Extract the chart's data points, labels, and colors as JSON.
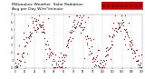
{
  "title": "Milwaukee Weather  Solar Radiation\nAvg per Day W/m²/minute",
  "title_fontsize": 3.2,
  "bg_color": "#ffffff",
  "plot_bg_color": "#ffffff",
  "grid_color": "#bbbbbb",
  "dot_color_red": "#cc0000",
  "dot_color_black": "#000000",
  "legend_box_color": "#cc0000",
  "ylim": [
    0,
    7
  ],
  "yticks": [
    0,
    1,
    2,
    3,
    4,
    5,
    6,
    7
  ],
  "ytick_labels": [
    "0",
    "1",
    "2",
    "3",
    "4",
    "5",
    "6",
    "7"
  ],
  "seed": 17
}
